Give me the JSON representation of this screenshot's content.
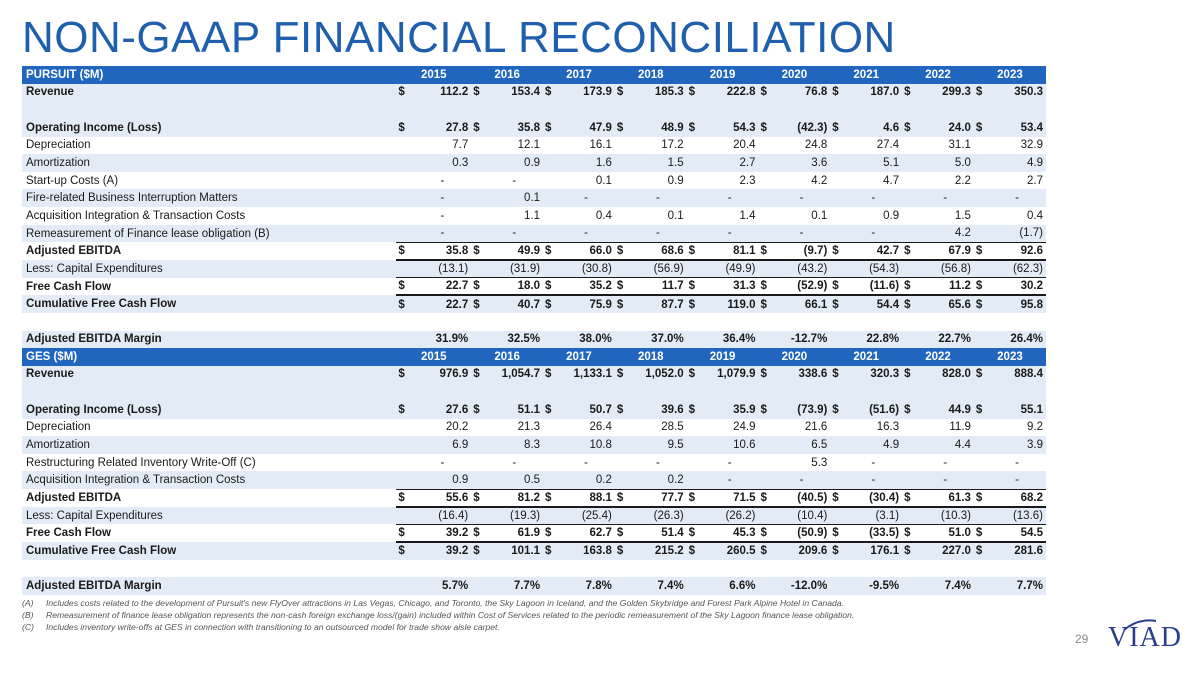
{
  "title": "NON-GAAP FINANCIAL RECONCILIATION",
  "years": [
    "2015",
    "2016",
    "2017",
    "2018",
    "2019",
    "2020",
    "2021",
    "2022",
    "2023"
  ],
  "pursuit": {
    "header": "PURSUIT ($M)",
    "rows": [
      {
        "label": "Revenue",
        "bold": true,
        "shade": true,
        "cur": true,
        "values": [
          "112.2",
          "153.4",
          "173.9",
          "185.3",
          "222.8",
          "76.8",
          "187.0",
          "299.3",
          "350.3"
        ]
      },
      {
        "spacer": true
      },
      {
        "label": "Operating Income (Loss)",
        "bold": true,
        "shade": true,
        "cur": true,
        "values": [
          "27.8",
          "35.8",
          "47.9",
          "48.9",
          "54.3",
          "(42.3)",
          "4.6",
          "24.0",
          "53.4"
        ]
      },
      {
        "label": "Depreciation",
        "values": [
          "7.7",
          "12.1",
          "16.1",
          "17.2",
          "20.4",
          "24.8",
          "27.4",
          "31.1",
          "32.9"
        ]
      },
      {
        "label": "Amortization",
        "shade": true,
        "values": [
          "0.3",
          "0.9",
          "1.6",
          "1.5",
          "2.7",
          "3.6",
          "5.1",
          "5.0",
          "4.9"
        ]
      },
      {
        "label": "Start-up Costs (A)",
        "values": [
          "-",
          "-",
          "0.1",
          "0.9",
          "2.3",
          "4.2",
          "4.7",
          "2.2",
          "2.7"
        ]
      },
      {
        "label": "Fire-related Business Interruption Matters",
        "shade": true,
        "values": [
          "-",
          "0.1",
          "-",
          "-",
          "-",
          "-",
          "-",
          "-",
          "-"
        ]
      },
      {
        "label": "Acquisition Integration & Transaction Costs",
        "values": [
          "-",
          "1.1",
          "0.4",
          "0.1",
          "1.4",
          "0.1",
          "0.9",
          "1.5",
          "0.4"
        ]
      },
      {
        "label": "Remeasurement of Finance lease obligation (B)",
        "shade": true,
        "values": [
          "-",
          "-",
          "-",
          "-",
          "-",
          "-",
          "-",
          "4.2",
          "(1.7)"
        ]
      },
      {
        "label": "Adjusted EBITDA",
        "bold": true,
        "cur": true,
        "ul": true,
        "dul": true,
        "values": [
          "35.8",
          "49.9",
          "66.0",
          "68.6",
          "81.1",
          "(9.7)",
          "42.7",
          "67.9",
          "92.6"
        ]
      },
      {
        "label": "Less: Capital Expenditures",
        "shade": true,
        "values": [
          "(13.1)",
          "(31.9)",
          "(30.8)",
          "(56.9)",
          "(49.9)",
          "(43.2)",
          "(54.3)",
          "(56.8)",
          "(62.3)"
        ]
      },
      {
        "label": "Free Cash Flow",
        "bold": true,
        "cur": true,
        "ul": true,
        "dul": true,
        "values": [
          "22.7",
          "18.0",
          "35.2",
          "11.7",
          "31.3",
          "(52.9)",
          "(11.6)",
          "11.2",
          "30.2"
        ]
      },
      {
        "label": "Cumulative Free Cash Flow",
        "bold": true,
        "shade": true,
        "cur": true,
        "values": [
          "22.7",
          "40.7",
          "75.9",
          "87.7",
          "119.0",
          "66.1",
          "54.4",
          "65.6",
          "95.8"
        ]
      },
      {
        "blank": true
      },
      {
        "label": "Adjusted EBITDA Margin",
        "bold": true,
        "shade": true,
        "pct": true,
        "values": [
          "31.9%",
          "32.5%",
          "38.0%",
          "37.0%",
          "36.4%",
          "-12.7%",
          "22.8%",
          "22.7%",
          "26.4%"
        ]
      }
    ]
  },
  "ges": {
    "header": "GES ($M)",
    "rows": [
      {
        "label": "Revenue",
        "bold": true,
        "shade": true,
        "cur": true,
        "values": [
          "976.9",
          "1,054.7",
          "1,133.1",
          "1,052.0",
          "1,079.9",
          "338.6",
          "320.3",
          "828.0",
          "888.4"
        ]
      },
      {
        "spacer": true
      },
      {
        "label": "Operating Income (Loss)",
        "bold": true,
        "shade": true,
        "cur": true,
        "values": [
          "27.6",
          "51.1",
          "50.7",
          "39.6",
          "35.9",
          "(73.9)",
          "(51.6)",
          "44.9",
          "55.1"
        ]
      },
      {
        "label": "Depreciation",
        "values": [
          "20.2",
          "21.3",
          "26.4",
          "28.5",
          "24.9",
          "21.6",
          "16.3",
          "11.9",
          "9.2"
        ]
      },
      {
        "label": "Amortization",
        "shade": true,
        "values": [
          "6.9",
          "8.3",
          "10.8",
          "9.5",
          "10.6",
          "6.5",
          "4.9",
          "4.4",
          "3.9"
        ]
      },
      {
        "label": "Restructuring Related Inventory Write-Off (C)",
        "values": [
          "-",
          "-",
          "-",
          "-",
          "-",
          "5.3",
          "-",
          "-",
          "-"
        ]
      },
      {
        "label": "Acquisition Integration & Transaction Costs",
        "shade": true,
        "values": [
          "0.9",
          "0.5",
          "0.2",
          "0.2",
          "-",
          "-",
          "-",
          "-",
          "-"
        ]
      },
      {
        "label": "Adjusted EBITDA",
        "bold": true,
        "cur": true,
        "ul": true,
        "dul": true,
        "values": [
          "55.6",
          "81.2",
          "88.1",
          "77.7",
          "71.5",
          "(40.5)",
          "(30.4)",
          "61.3",
          "68.2"
        ]
      },
      {
        "label": "Less: Capital Expenditures",
        "shade": true,
        "values": [
          "(16.4)",
          "(19.3)",
          "(25.4)",
          "(26.3)",
          "(26.2)",
          "(10.4)",
          "(3.1)",
          "(10.3)",
          "(13.6)"
        ]
      },
      {
        "label": "Free Cash Flow",
        "bold": true,
        "cur": true,
        "ul": true,
        "dul": true,
        "values": [
          "39.2",
          "61.9",
          "62.7",
          "51.4",
          "45.3",
          "(50.9)",
          "(33.5)",
          "51.0",
          "54.5"
        ]
      },
      {
        "label": "Cumulative Free Cash Flow",
        "bold": true,
        "shade": true,
        "cur": true,
        "values": [
          "39.2",
          "101.1",
          "163.8",
          "215.2",
          "260.5",
          "209.6",
          "176.1",
          "227.0",
          "281.6"
        ]
      },
      {
        "blank": true
      },
      {
        "label": "Adjusted EBITDA Margin",
        "bold": true,
        "shade": true,
        "pct": true,
        "values": [
          "5.7%",
          "7.7%",
          "7.8%",
          "7.4%",
          "6.6%",
          "-12.0%",
          "-9.5%",
          "7.4%",
          "7.7%"
        ]
      }
    ]
  },
  "currency_symbol": "$",
  "footnotes": [
    {
      "key": "(A)",
      "text": "Includes costs related to the development of Pursuit's new FlyOver attractions in Las Vegas, Chicago, and Toronto, the Sky Lagoon in Iceland, and the Golden Skybridge and Forest Park Alpine Hotel in Canada."
    },
    {
      "key": "(B)",
      "text": "Remeasurement of finance lease obligation represents the non-cash foreign exchange loss/(gain) included within Cost of Services related to the periodic remeasurement of the Sky Lagoon finance lease obligation."
    },
    {
      "key": "(C)",
      "text": "Includes inventory write-offs at GES in connection with transitioning to an outsourced model for trade show aisle carpet."
    }
  ],
  "page_number": "29",
  "logo_text": "VIAD",
  "colors": {
    "title": "#1f5fae",
    "header_bg": "#2066bf",
    "shade": "#e3ecf6",
    "logo": "#2a3d8f"
  }
}
